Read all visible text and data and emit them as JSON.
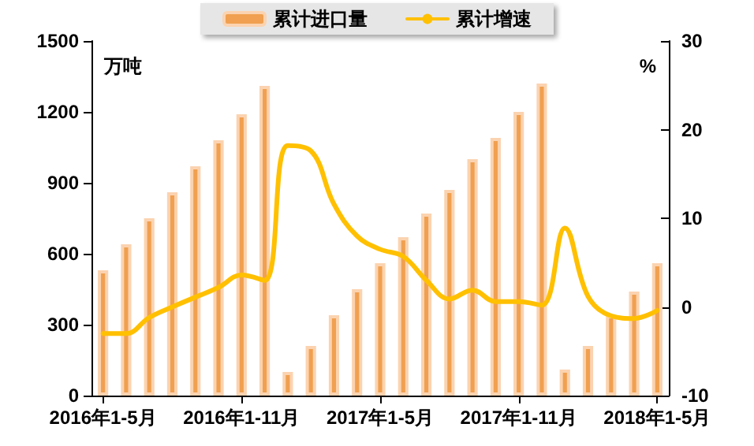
{
  "chart_data": {
    "type": "bar",
    "ylabel": "万吨",
    "y2label": "%",
    "categories": [
      "2016年1-5月",
      null,
      null,
      null,
      null,
      null,
      "2016年1-11月",
      null,
      null,
      null,
      null,
      null,
      "2017年1-5月",
      null,
      null,
      null,
      null,
      null,
      "2017年1-11月",
      null,
      null,
      null,
      null,
      null,
      "2018年1-5月"
    ],
    "series": [
      {
        "name": "累计进口量",
        "color": "#f0a050",
        "values": [
          530,
          640,
          750,
          860,
          970,
          1080,
          1190,
          1310,
          100,
          210,
          340,
          450,
          560,
          670,
          770,
          870,
          1000,
          1090,
          1200,
          1320,
          110,
          210,
          340,
          440,
          560
        ]
      },
      {
        "name": "累计增速",
        "type": "line",
        "axis": "y2",
        "color": "#ffc000",
        "values": [
          -3,
          -3,
          -1.2,
          0,
          1.1,
          2.2,
          3.6,
          3,
          18.2,
          17.6,
          11.6,
          8,
          6.5,
          5.7,
          3,
          0.9,
          1.9,
          0.6,
          0.6,
          0.2,
          8.9,
          1.2,
          -1,
          -1.3,
          -0.4
        ]
      }
    ],
    "ylim": [
      0,
      1500
    ],
    "yticks": [
      0,
      300,
      600,
      900,
      1200,
      1500
    ],
    "y2lim": [
      -10,
      30
    ],
    "y2ticks": [
      -10,
      0,
      10,
      20,
      30
    ],
    "grid": false,
    "legend": "top",
    "marker": "none"
  }
}
